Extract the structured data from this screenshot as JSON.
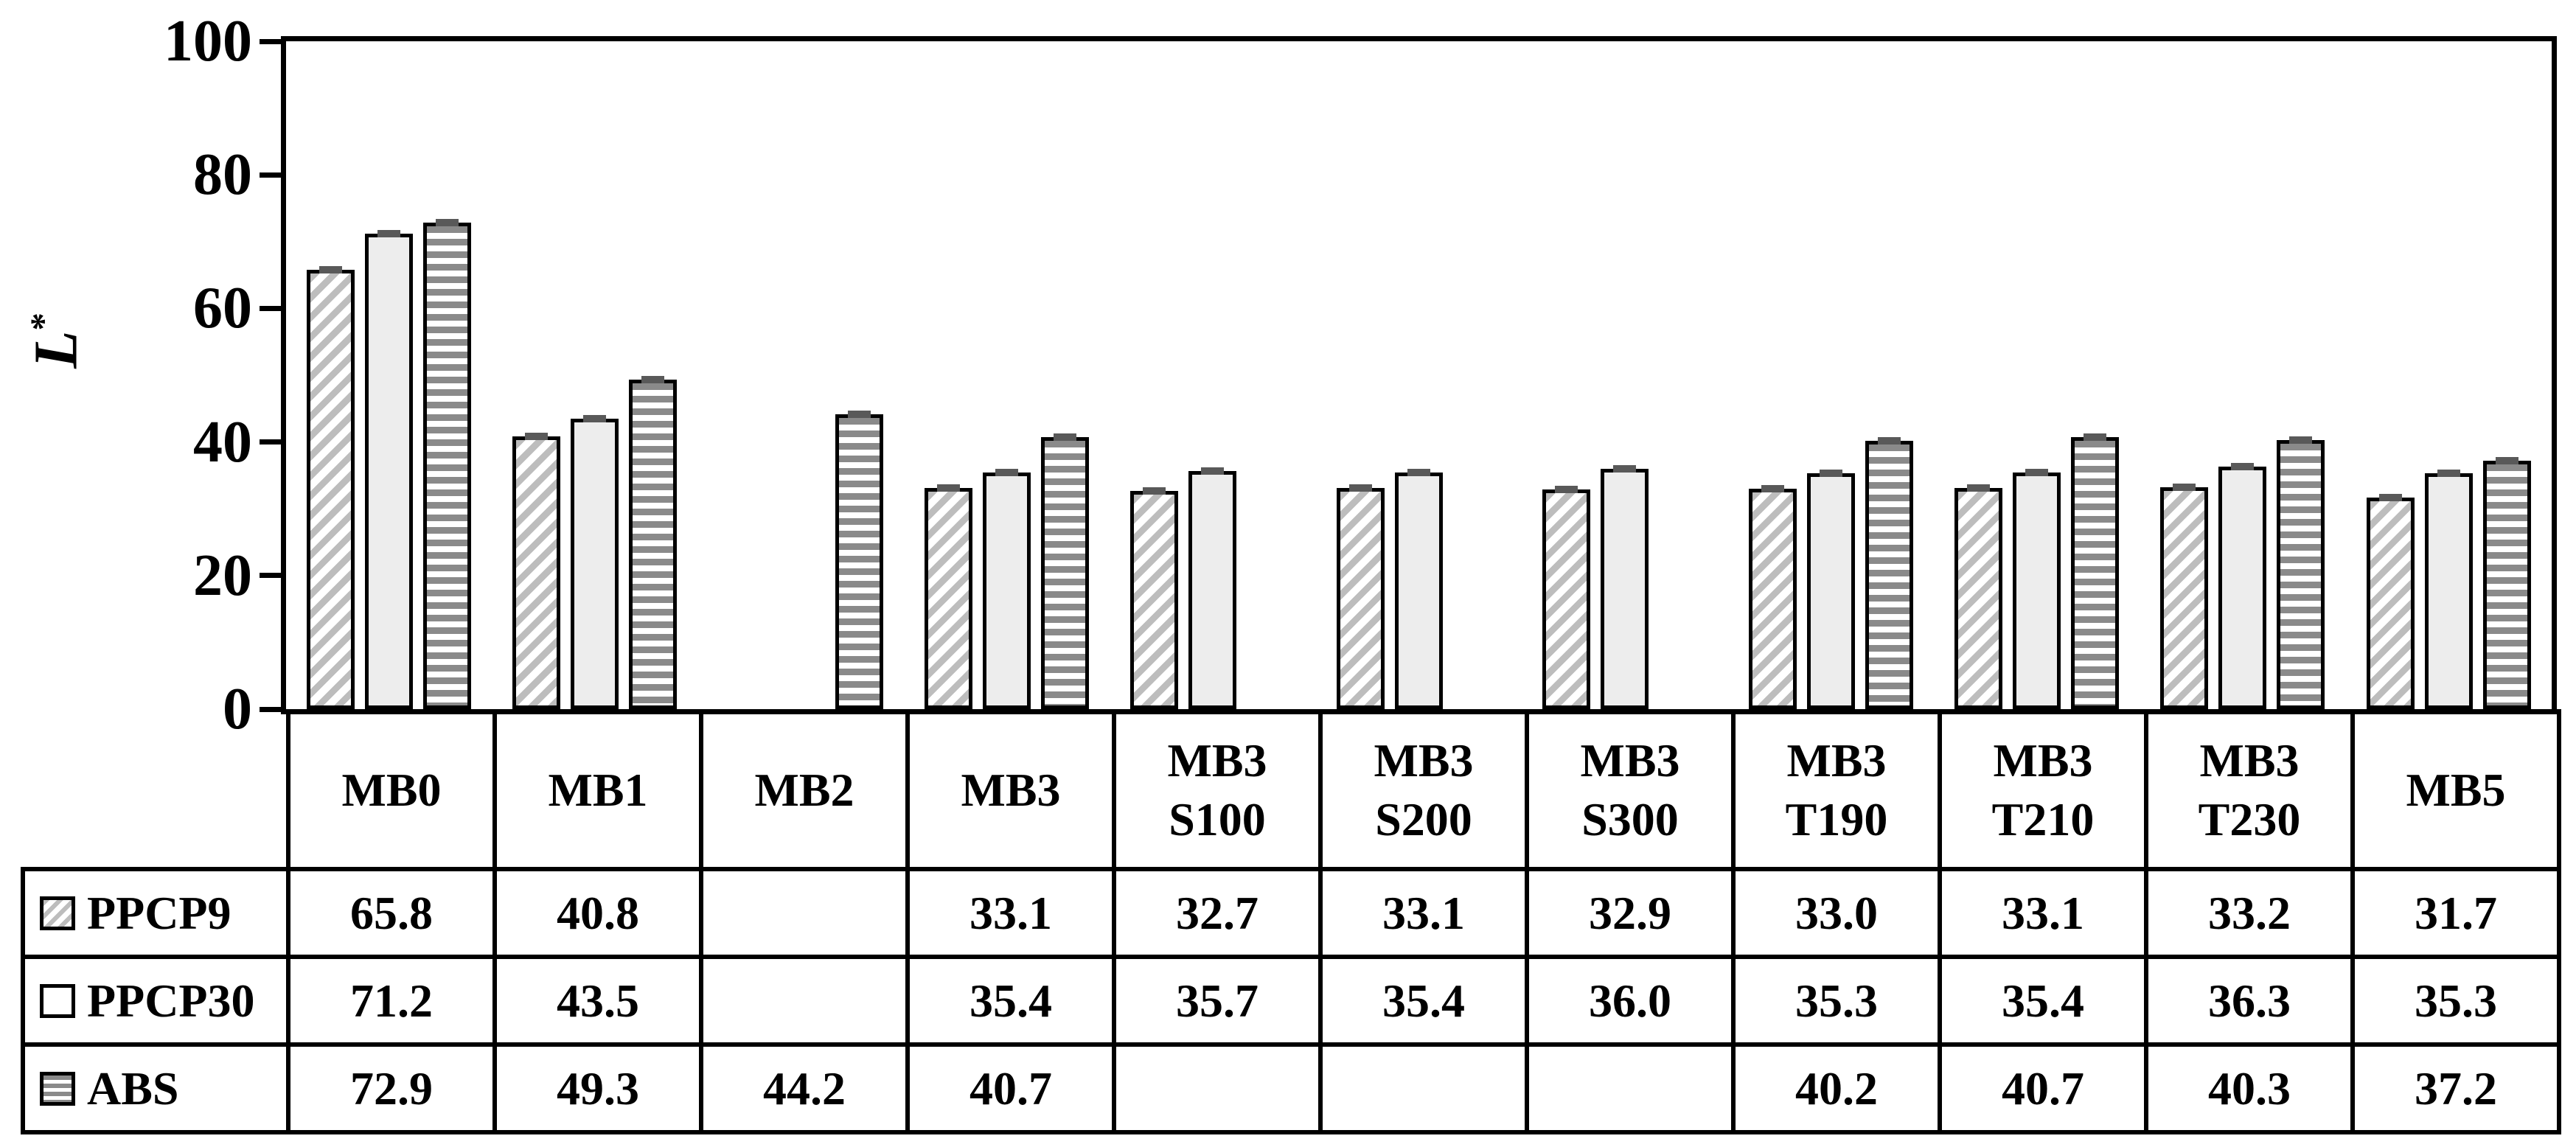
{
  "chart_data": {
    "type": "bar",
    "title": "",
    "xlabel": "",
    "ylabel": "L",
    "ylabel_sup": "*",
    "ylim": [
      0,
      100
    ],
    "yticks": [
      0,
      20,
      40,
      60,
      80,
      100
    ],
    "grid": false,
    "error_bars": true,
    "legend_position": "table-row-headers",
    "categories": [
      "MB0",
      "MB1",
      "MB2",
      "MB3",
      "MB3\nS100",
      "MB3\nS200",
      "MB3\nS300",
      "MB3\nT190",
      "MB3\nT210",
      "MB3\nT230",
      "MB5"
    ],
    "series": [
      {
        "name": "PPCP9",
        "pattern": "diagonal-hatch",
        "values": [
          65.8,
          40.8,
          null,
          33.1,
          32.7,
          33.1,
          32.9,
          33.0,
          33.1,
          33.2,
          31.7
        ]
      },
      {
        "name": "PPCP30",
        "pattern": "solid-light",
        "values": [
          71.2,
          43.5,
          null,
          35.4,
          35.7,
          35.4,
          36.0,
          35.3,
          35.4,
          36.3,
          35.3
        ]
      },
      {
        "name": "ABS",
        "pattern": "horizontal-stripes",
        "values": [
          72.9,
          49.3,
          44.2,
          40.7,
          null,
          null,
          null,
          40.2,
          40.7,
          40.3,
          37.2
        ]
      }
    ]
  },
  "colors": {
    "hatch_gray": "#bdbdbd",
    "solid_fill": "#ededed",
    "stripe_gray": "#8a8a8a",
    "error_cap": "#595959",
    "line": "#000000",
    "background": "#ffffff"
  }
}
